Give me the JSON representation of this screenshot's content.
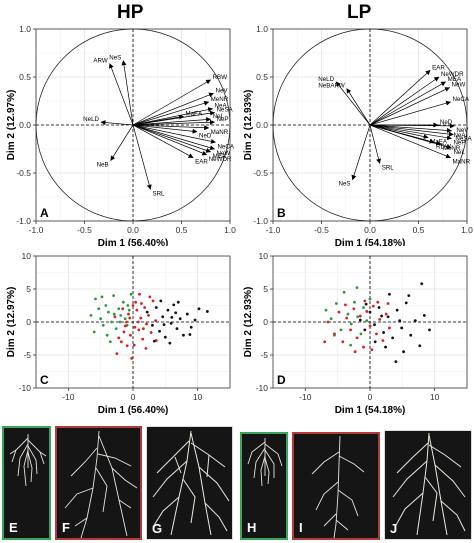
{
  "titles": {
    "hp": "HP",
    "lp": "LP"
  },
  "colors": {
    "green": "#2e9a3c",
    "red": "#d42323",
    "black": "#111111",
    "border_green": "#3aa55a",
    "border_red": "#b33a3a"
  },
  "chart_data": [
    {
      "type": "pca_biplot",
      "panel": "A",
      "group": "HP",
      "xlabel": "Dim 1 (56.40%)",
      "ylabel": "Dim 2 (12.97%)",
      "xlim": [
        -1.0,
        1.0
      ],
      "ylim": [
        -1.0,
        1.0
      ],
      "x_ticks": [
        "-1.0",
        "-0.5",
        "0.0",
        "0.5",
        "1.0"
      ],
      "y_ticks": [
        "-1.0",
        "-0.5",
        "0.0",
        "0.5",
        "1.0"
      ],
      "grid": true,
      "vectors": [
        {
          "name": "ARW",
          "x": -0.24,
          "y": 0.64
        },
        {
          "name": "NeS",
          "x": -0.1,
          "y": 0.67
        },
        {
          "name": "RBW",
          "x": 0.8,
          "y": 0.47
        },
        {
          "name": "NeV",
          "x": 0.83,
          "y": 0.33
        },
        {
          "name": "MeNR",
          "x": 0.78,
          "y": 0.24
        },
        {
          "name": "NeA",
          "x": 0.82,
          "y": 0.17
        },
        {
          "name": "NeSA",
          "x": 0.84,
          "y": 0.13
        },
        {
          "name": "MaEA",
          "x": 0.52,
          "y": 0.09
        },
        {
          "name": "NeL",
          "x": 0.8,
          "y": 0.06
        },
        {
          "name": "NeP",
          "x": 0.84,
          "y": 0.03
        },
        {
          "name": "MaNR",
          "x": 0.78,
          "y": -0.03
        },
        {
          "name": "NeD",
          "x": 0.66,
          "y": -0.07
        },
        {
          "name": "NeLD",
          "x": -0.33,
          "y": 0.03
        },
        {
          "name": "NeCA",
          "x": 0.85,
          "y": -0.18
        },
        {
          "name": "NeW",
          "x": 0.84,
          "y": -0.25
        },
        {
          "name": "MEA",
          "x": 0.8,
          "y": -0.28
        },
        {
          "name": "NeWDR",
          "x": 0.76,
          "y": -0.31
        },
        {
          "name": "EAR",
          "x": 0.62,
          "y": -0.34
        },
        {
          "name": "NeB",
          "x": -0.23,
          "y": -0.37
        },
        {
          "name": "SRL",
          "x": 0.18,
          "y": -0.67
        }
      ]
    },
    {
      "type": "pca_biplot",
      "panel": "B",
      "group": "LP",
      "xlabel": "Dim 1 (54.18%)",
      "ylabel": "Dim 2 (12.93%)",
      "xlim": [
        -1.0,
        1.0
      ],
      "ylim": [
        -1.0,
        1.0
      ],
      "x_ticks": [
        "-1.0",
        "-0.5",
        "0.0",
        "0.5",
        "1.0"
      ],
      "y_ticks": [
        "-1.0",
        "-0.5",
        "0.0",
        "0.5",
        "1.0"
      ],
      "grid": true,
      "vectors": [
        {
          "name": "NeLD",
          "x": -0.35,
          "y": 0.45
        },
        {
          "name": "NeBARW",
          "x": -0.24,
          "y": 0.38
        },
        {
          "name": "EAR",
          "x": 0.62,
          "y": 0.57
        },
        {
          "name": "NeWDR",
          "x": 0.71,
          "y": 0.5
        },
        {
          "name": "MEA",
          "x": 0.78,
          "y": 0.45
        },
        {
          "name": "NeW",
          "x": 0.82,
          "y": 0.39
        },
        {
          "name": "NeCA",
          "x": 0.83,
          "y": 0.24
        },
        {
          "name": "NeD",
          "x": 0.7,
          "y": 0.0
        },
        {
          "name": "NeV",
          "x": 0.87,
          "y": -0.01
        },
        {
          "name": "NeA",
          "x": 0.84,
          "y": -0.06
        },
        {
          "name": "NeSA",
          "x": 0.86,
          "y": -0.1
        },
        {
          "name": "MaEA",
          "x": 0.6,
          "y": -0.13
        },
        {
          "name": "NeP",
          "x": 0.84,
          "y": -0.14
        },
        {
          "name": "RDW",
          "x": 0.66,
          "y": -0.18
        },
        {
          "name": "MeNR",
          "x": 0.73,
          "y": -0.2
        },
        {
          "name": "NeL",
          "x": 0.84,
          "y": -0.24
        },
        {
          "name": "MaNR",
          "x": 0.83,
          "y": -0.34
        },
        {
          "name": "SRL",
          "x": 0.1,
          "y": -0.4
        },
        {
          "name": "NeS",
          "x": -0.18,
          "y": -0.57
        }
      ]
    },
    {
      "type": "scatter",
      "panel": "C",
      "group": "HP",
      "xlabel": "Dim 1 (56.40%)",
      "ylabel": "Dim 2 (12.97%)",
      "xlim": [
        -15,
        15
      ],
      "ylim": [
        -10,
        10
      ],
      "x_ticks": [
        -10,
        0,
        10
      ],
      "y_ticks": [
        -10,
        -5,
        0,
        5,
        10
      ],
      "grid": true,
      "series": [
        {
          "color": "green",
          "points": [
            [
              -6.5,
              1.0
            ],
            [
              -5.8,
              3.5
            ],
            [
              -5.0,
              0.5
            ],
            [
              -4.6,
              -0.5
            ],
            [
              -4.2,
              2.5
            ],
            [
              -3.8,
              1.5
            ],
            [
              -3.3,
              0.0
            ],
            [
              -3.0,
              4.0
            ],
            [
              -2.6,
              -1.0
            ],
            [
              -2.2,
              2.0
            ],
            [
              -1.9,
              1.0
            ],
            [
              -1.5,
              3.0
            ],
            [
              -1.2,
              0.5
            ],
            [
              -0.9,
              -0.5
            ],
            [
              -0.6,
              1.8
            ],
            [
              -0.3,
              4.2
            ],
            [
              -4.0,
              -2.0
            ],
            [
              -6.0,
              -1.5
            ],
            [
              -3.5,
              -3.0
            ],
            [
              -2.0,
              0.0
            ],
            [
              -5.3,
              2.0
            ],
            [
              -0.8,
              2.5
            ],
            [
              -4.8,
              3.8
            ],
            [
              -2.9,
              1.2
            ]
          ]
        },
        {
          "color": "red",
          "points": [
            [
              -2.5,
              -4.8
            ],
            [
              -1.8,
              -3.0
            ],
            [
              -1.4,
              -1.5
            ],
            [
              -1.0,
              0.0
            ],
            [
              -0.7,
              1.2
            ],
            [
              -0.4,
              -2.0
            ],
            [
              0.0,
              2.5
            ],
            [
              0.3,
              -0.8
            ],
            [
              0.6,
              1.8
            ],
            [
              0.9,
              -1.2
            ],
            [
              1.2,
              0.6
            ],
            [
              1.5,
              -2.6
            ],
            [
              1.8,
              2.2
            ],
            [
              2.1,
              -0.3
            ],
            [
              2.4,
              1.0
            ],
            [
              2.8,
              -1.6
            ],
            [
              3.1,
              3.2
            ],
            [
              3.5,
              0.2
            ],
            [
              0.2,
              -3.5
            ],
            [
              -0.2,
              -5.5
            ],
            [
              1.0,
              4.2
            ],
            [
              -1.6,
              2.0
            ],
            [
              2.0,
              -4.0
            ],
            [
              -2.2,
              -2.4
            ],
            [
              0.8,
              0.0
            ],
            [
              -0.5,
              0.6
            ],
            [
              1.6,
              -1.0
            ],
            [
              2.6,
              3.8
            ],
            [
              -1.2,
              -0.6
            ],
            [
              0.4,
              3.0
            ],
            [
              3.6,
              -2.8
            ],
            [
              -2.8,
              0.8
            ],
            [
              1.3,
              2.8
            ],
            [
              -0.9,
              -3.6
            ]
          ]
        },
        {
          "color": "black",
          "points": [
            [
              2.2,
              1.5
            ],
            [
              3.0,
              -0.5
            ],
            [
              3.6,
              2.2
            ],
            [
              4.1,
              -1.4
            ],
            [
              4.6,
              0.8
            ],
            [
              5.0,
              -2.3
            ],
            [
              5.4,
              1.8
            ],
            [
              5.9,
              -0.2
            ],
            [
              6.3,
              2.6
            ],
            [
              6.8,
              -1.0
            ],
            [
              7.3,
              0.5
            ],
            [
              7.8,
              -2.0
            ],
            [
              8.4,
              1.2
            ],
            [
              9.0,
              -0.8
            ],
            [
              9.6,
              0.3
            ],
            [
              10.2,
              2.0
            ],
            [
              4.3,
              3.2
            ],
            [
              5.7,
              -3.2
            ],
            [
              7.0,
              3.0
            ],
            [
              3.3,
              -2.9
            ],
            [
              6.0,
              0.7
            ],
            [
              8.8,
              -1.9
            ],
            [
              4.8,
              -0.4
            ],
            [
              6.6,
              1.4
            ],
            [
              11.5,
              1.6
            ]
          ]
        }
      ]
    },
    {
      "type": "scatter",
      "panel": "D",
      "group": "LP",
      "xlabel": "Dim 1 (54.18%)",
      "ylabel": "Dim 2 (12.93%)",
      "xlim": [
        -15,
        15
      ],
      "ylim": [
        -10,
        10
      ],
      "x_ticks": [
        -10,
        0,
        10
      ],
      "y_ticks": [
        -10,
        -5,
        0,
        5,
        10
      ],
      "grid": true,
      "series": [
        {
          "color": "green",
          "points": [
            [
              -6.0,
              0.5
            ],
            [
              -5.2,
              2.8
            ],
            [
              -4.5,
              -1.2
            ],
            [
              -4.0,
              4.5
            ],
            [
              -3.4,
              1.2
            ],
            [
              -2.9,
              -0.3
            ],
            [
              -2.4,
              3.0
            ],
            [
              -1.9,
              0.8
            ],
            [
              -1.4,
              -1.8
            ],
            [
              -1.0,
              2.2
            ],
            [
              -0.5,
              0.2
            ],
            [
              0.0,
              3.5
            ],
            [
              -3.0,
              -3.5
            ],
            [
              -5.5,
              -2.0
            ],
            [
              -2.0,
              5.2
            ],
            [
              -6.8,
              1.8
            ]
          ]
        },
        {
          "color": "red",
          "points": [
            [
              -6.5,
              0.0
            ],
            [
              -5.5,
              -1.8
            ],
            [
              -4.8,
              1.5
            ],
            [
              -4.2,
              -3.0
            ],
            [
              -3.6,
              0.6
            ],
            [
              -3.0,
              -1.2
            ],
            [
              -2.5,
              2.0
            ],
            [
              -2.0,
              -2.4
            ],
            [
              -1.5,
              0.9
            ],
            [
              -1.0,
              -3.8
            ],
            [
              -0.5,
              1.6
            ],
            [
              0.0,
              -0.6
            ],
            [
              0.5,
              2.4
            ],
            [
              1.0,
              -1.8
            ],
            [
              1.5,
              0.4
            ],
            [
              2.0,
              -2.8
            ],
            [
              2.5,
              1.2
            ],
            [
              3.0,
              -0.9
            ],
            [
              -0.8,
              3.2
            ],
            [
              1.2,
              3.0
            ],
            [
              -3.8,
              2.6
            ],
            [
              0.3,
              -4.2
            ],
            [
              -2.3,
              -4.5
            ],
            [
              2.8,
              2.8
            ],
            [
              -7.0,
              -3.0
            ]
          ]
        },
        {
          "color": "black",
          "points": [
            [
              -1.5,
              0.3
            ],
            [
              -0.8,
              -1.2
            ],
            [
              0.0,
              1.5
            ],
            [
              0.7,
              -0.4
            ],
            [
              1.4,
              2.2
            ],
            [
              2.1,
              -1.6
            ],
            [
              2.8,
              0.8
            ],
            [
              3.5,
              -2.4
            ],
            [
              4.2,
              1.8
            ],
            [
              4.9,
              -0.9
            ],
            [
              5.6,
              2.9
            ],
            [
              6.3,
              -2.0
            ],
            [
              7.0,
              0.2
            ],
            [
              7.7,
              -3.6
            ],
            [
              8.4,
              1.0
            ],
            [
              3.0,
              4.2
            ],
            [
              5.2,
              -4.5
            ],
            [
              0.8,
              -3.0
            ],
            [
              6.0,
              4.0
            ],
            [
              4.6,
              0.2
            ],
            [
              2.4,
              -3.8
            ],
            [
              -0.6,
              2.7
            ],
            [
              9.2,
              -1.2
            ],
            [
              1.8,
              0.9
            ],
            [
              8.0,
              5.8
            ],
            [
              4.0,
              -6.0
            ]
          ]
        }
      ]
    }
  ],
  "photos": [
    {
      "label": "E",
      "border": "green"
    },
    {
      "label": "F",
      "border": "red"
    },
    {
      "label": "G",
      "border": "gray"
    },
    {
      "label": "H",
      "border": "green"
    },
    {
      "label": "I",
      "border": "red"
    },
    {
      "label": "J",
      "border": "gray"
    }
  ]
}
